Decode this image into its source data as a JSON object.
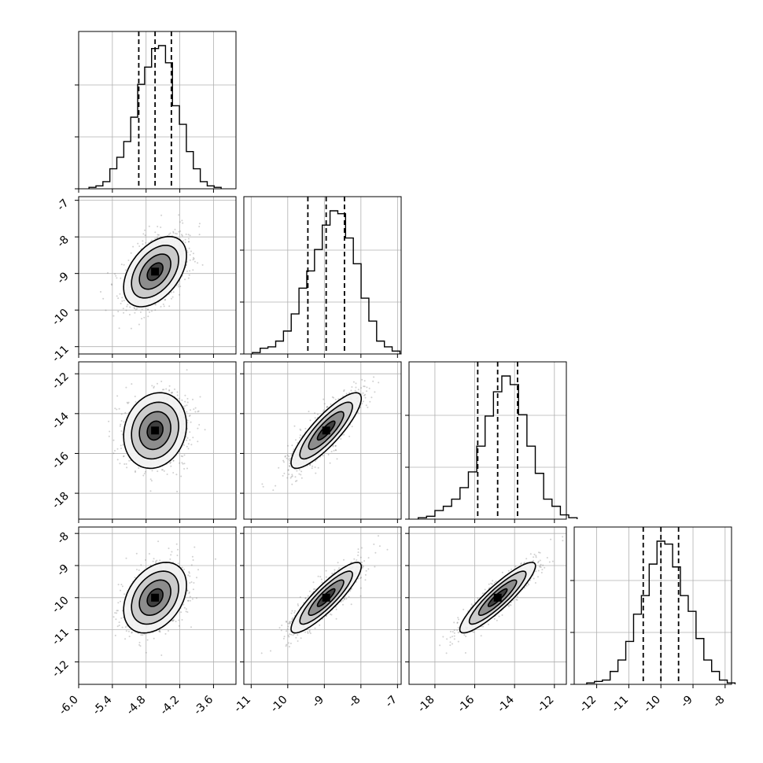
{
  "chart_data": {
    "type": "corner",
    "params": [
      {
        "range": [
          -6.0,
          -3.2
        ],
        "ticks": [
          "-6.0",
          "-5.4",
          "-4.8",
          "-4.2",
          "-3.6"
        ],
        "tick_values": [
          -6.0,
          -5.4,
          -4.8,
          -4.2,
          -3.6
        ],
        "mean": -4.64,
        "sd": 0.28,
        "quantiles": [
          -4.93,
          -4.64,
          -4.35
        ]
      },
      {
        "range": [
          -11.2,
          -6.9
        ],
        "ticks": [
          "-11",
          "-10",
          "-9",
          "-8",
          "-7"
        ],
        "tick_values": [
          -11,
          -10,
          -9,
          -8,
          -7
        ],
        "mean": -8.95,
        "sd": 0.48,
        "quantiles": [
          -9.45,
          -8.95,
          -8.45
        ]
      },
      {
        "range": [
          -19.3,
          -11.4
        ],
        "ticks": [
          "-18",
          "-16",
          "-14",
          "-12"
        ],
        "tick_values": [
          -18,
          -16,
          -14,
          -12
        ],
        "mean": -14.85,
        "sd": 0.95,
        "quantiles": [
          -15.85,
          -14.85,
          -13.85
        ]
      },
      {
        "range": [
          -12.7,
          -7.8
        ],
        "ticks": [
          "-12",
          "-11",
          "-10",
          "-9",
          "-8"
        ],
        "tick_values": [
          -12,
          -11,
          -10,
          -9,
          -8
        ],
        "mean": -10.0,
        "sd": 0.55,
        "quantiles": [
          -10.55,
          -10.0,
          -9.45
        ]
      }
    ],
    "correlations": {
      "1-0": 0.45,
      "2-0": 0.15,
      "2-1": 0.85,
      "3-0": 0.35,
      "3-1": 0.88,
      "3-2": 0.9
    },
    "histograms": [
      [
        1,
        2,
        5,
        14,
        22,
        33,
        50,
        73,
        85,
        98,
        100,
        88,
        58,
        45,
        26,
        14,
        5,
        2,
        1
      ],
      [
        1,
        4,
        5,
        9,
        16,
        28,
        46,
        58,
        73,
        90,
        100,
        98,
        81,
        63,
        39,
        23,
        9,
        5,
        2
      ],
      [
        1,
        2,
        6,
        9,
        14,
        22,
        33,
        51,
        72,
        89,
        100,
        94,
        73,
        51,
        32,
        14,
        9,
        3,
        1
      ],
      [
        1,
        2,
        3,
        9,
        17,
        30,
        49,
        62,
        84,
        100,
        98,
        82,
        62,
        51,
        32,
        17,
        9,
        3,
        1
      ]
    ],
    "quantile_levels": [
      0.16,
      0.5,
      0.84
    ],
    "contour_levels": [
      "0.5-sigma",
      "1-sigma",
      "1.5-sigma",
      "2-sigma"
    ],
    "grid": true,
    "colors": {
      "axes": "#000000",
      "grid": "#b0b0b0",
      "points": "#777777",
      "hist": "#000000"
    }
  }
}
